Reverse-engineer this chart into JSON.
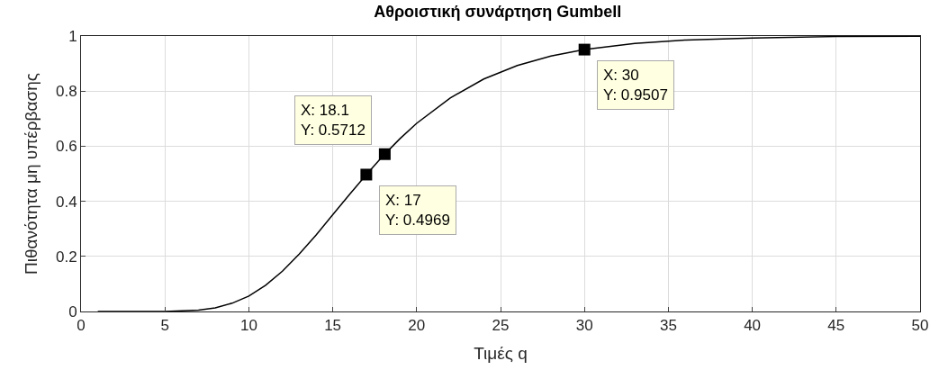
{
  "chart_data": {
    "type": "line",
    "title": "Αθροιστική συνάρτηση Gumbell",
    "xlabel": "Τιμές q",
    "ylabel": "Πιθανότητα μη υπέρβασης",
    "xlim": [
      0,
      50
    ],
    "xticks": [
      0,
      5,
      10,
      15,
      20,
      25,
      30,
      35,
      40,
      45,
      50
    ],
    "ylim": [
      0,
      1
    ],
    "yticks": [
      0,
      0.2,
      0.4,
      0.6,
      0.8,
      1
    ],
    "grid": true,
    "series": [
      {
        "color": "#000000",
        "marker": "none",
        "x": [
          1,
          5,
          7,
          8,
          9,
          10,
          11,
          12,
          13,
          14,
          15,
          16,
          17,
          18,
          19,
          20,
          22,
          24,
          26,
          28,
          30,
          33,
          36,
          40,
          45,
          50
        ],
        "values": [
          0,
          0,
          0.005,
          0.013,
          0.03,
          0.056,
          0.095,
          0.146,
          0.208,
          0.277,
          0.351,
          0.425,
          0.4969,
          0.565,
          0.627,
          0.683,
          0.775,
          0.844,
          0.893,
          0.927,
          0.9507,
          0.973,
          0.985,
          0.993,
          0.998,
          0.999
        ]
      },
      {
        "type": "scatter",
        "color": "#000000",
        "marker": "square",
        "x": [
          17,
          18.1,
          30
        ],
        "values": [
          0.4969,
          0.5712,
          0.9507
        ]
      }
    ],
    "annotations": [
      {
        "text": "X: 17\nY: 0.4969",
        "x": 17,
        "y": 0.4969
      },
      {
        "text": "X: 18.1\nY: 0.5712",
        "x": 18.1,
        "y": 0.5712
      },
      {
        "text": "X: 30\nY: 0.9507",
        "x": 30,
        "y": 0.9507
      }
    ]
  }
}
